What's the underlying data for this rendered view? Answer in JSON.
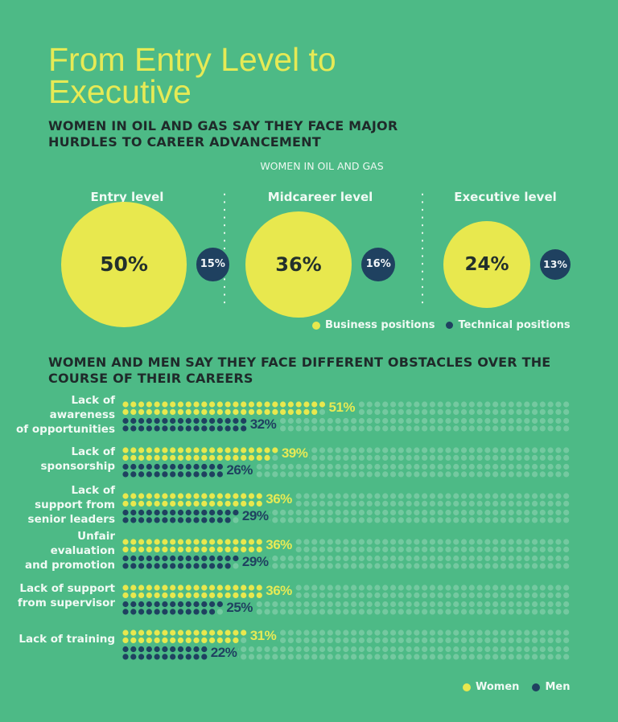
{
  "title": "From Entry Level to Executive",
  "subtitle": "WOMEN IN OIL AND GAS SAY THEY FACE MAJOR HURDLES TO CAREER ADVANCEMENT",
  "levels_heading": "WOMEN IN OIL AND GAS",
  "colors": {
    "background": "#4dba86",
    "business": "#e8e84e",
    "technical": "#1f4160",
    "women": "#e8e84e",
    "men": "#1f4160",
    "title": "#e6ea55"
  },
  "levels_legend": {
    "business": "Business positions",
    "technical": "Technical positions"
  },
  "obstacles_heading": "WOMEN AND MEN SAY THEY FACE DIFFERENT OBSTACLES OVER THE COURSE OF THEIR CAREERS",
  "obstacles_legend": {
    "women": "Women",
    "men": "Men"
  },
  "chart_data": [
    {
      "type": "bubble",
      "title": "WOMEN IN OIL AND GAS",
      "categories": [
        "Entry level",
        "Midcareer level",
        "Executive level"
      ],
      "series": [
        {
          "name": "Business positions",
          "values": [
            50,
            36,
            24
          ],
          "labels": [
            "50%",
            "36%",
            "24%"
          ]
        },
        {
          "name": "Technical positions",
          "values": [
            15,
            16,
            13
          ],
          "labels": [
            "15%",
            "16%",
            "13%"
          ]
        }
      ],
      "legend": "bottom-right"
    },
    {
      "type": "bar",
      "style": "dot-matrix",
      "title": "WOMEN AND MEN SAY THEY FACE DIFFERENT OBSTACLES OVER THE COURSE OF THEIR CAREERS",
      "categories": [
        "Lack of awareness of opportunities",
        "Lack of sponsorship",
        "Lack of support from senior leaders",
        "Unfair evaluation and promotion",
        "Lack of support from supervisor",
        "Lack of training"
      ],
      "category_lines": [
        [
          "Lack of",
          "awareness",
          "of opportunities"
        ],
        [
          "Lack of",
          "sponsorship"
        ],
        [
          "Lack of",
          "support from",
          "senior leaders"
        ],
        [
          "Unfair",
          "evaluation",
          "and promotion"
        ],
        [
          "Lack of support",
          "from supervisor"
        ],
        [
          "Lack of training"
        ]
      ],
      "series": [
        {
          "name": "Women",
          "values": [
            51,
            39,
            36,
            36,
            36,
            31
          ],
          "labels": [
            "51%",
            "39%",
            "36%",
            "36%",
            "36%",
            "31%"
          ]
        },
        {
          "name": "Men",
          "values": [
            32,
            26,
            29,
            29,
            25,
            22
          ],
          "labels": [
            "32%",
            "26%",
            "29%",
            "29%",
            "25%",
            "22%"
          ]
        }
      ],
      "unit": "%",
      "legend": "bottom-right"
    }
  ]
}
